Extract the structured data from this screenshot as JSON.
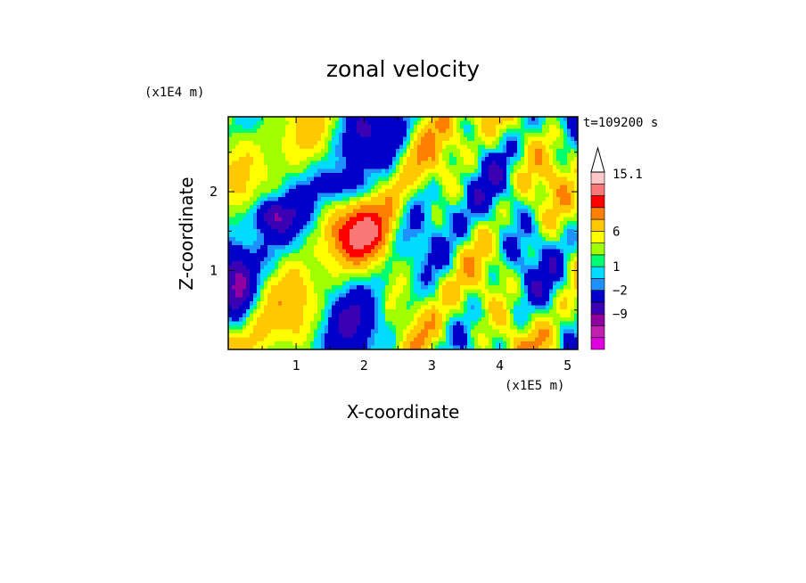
{
  "chart_data": {
    "type": "heatmap",
    "title": "zonal velocity",
    "xlabel": "X-coordinate",
    "ylabel": "Z-coordinate",
    "x_unit": "(x1E5 m)",
    "y_unit": "(x1E4 m)",
    "time_label": "t=109200 s",
    "xlim": [
      0,
      5.15
    ],
    "ylim": [
      0,
      2.95
    ],
    "x_ticks": [
      1,
      2,
      3,
      4,
      5
    ],
    "y_ticks": [
      1,
      2
    ],
    "colorbar": {
      "labels": [
        "15.1",
        "6",
        "1",
        "−2",
        "−9"
      ],
      "label_values": [
        15.1,
        6,
        1,
        -2,
        -9
      ],
      "levels": [
        -15,
        -12,
        -9,
        -6,
        -2,
        -1,
        1,
        2,
        4,
        6,
        9,
        12,
        15.1
      ],
      "colors": [
        "#e000e0",
        "#c020b0",
        "#9000a0",
        "#3c00b4",
        "#0000c8",
        "#1e90ff",
        "#00dcff",
        "#00ff6e",
        "#a0ff00",
        "#ffff00",
        "#ffc800",
        "#ff8000",
        "#ff0000",
        "#f87878",
        "#ffc8c8"
      ],
      "extend_top": true
    }
  }
}
